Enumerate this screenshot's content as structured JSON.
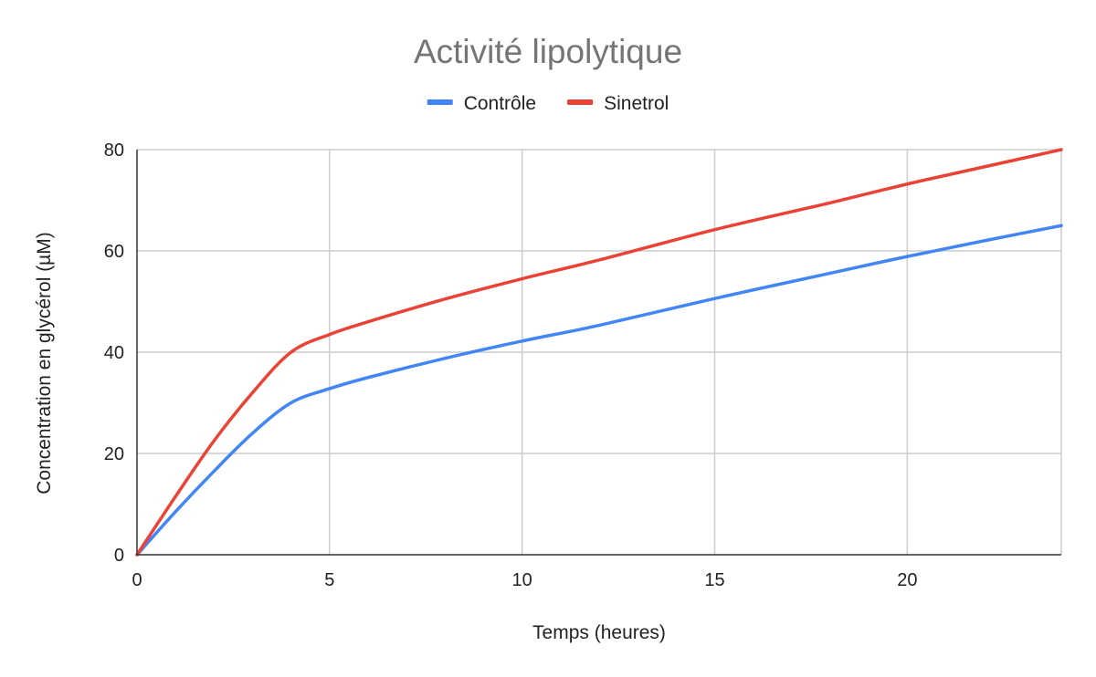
{
  "chart_data": {
    "type": "line",
    "title": "Activité lipolytique",
    "xlabel": "Temps (heures)",
    "ylabel": "Concentration en glycérol (µM)",
    "xlim": [
      0,
      24
    ],
    "ylim": [
      0,
      80
    ],
    "x_ticks": [
      0,
      5,
      10,
      15,
      20
    ],
    "x_tick_labels": [
      "0",
      "5",
      "10",
      "15",
      "20"
    ],
    "y_ticks": [
      0,
      20,
      40,
      60,
      80
    ],
    "y_tick_labels": [
      "0",
      "20",
      "40",
      "60",
      "80"
    ],
    "grid": true,
    "legend_position": "top",
    "series": [
      {
        "name": "Contrôle",
        "color": "#4285f4",
        "points": [
          [
            0,
            0
          ],
          [
            1,
            8.5
          ],
          [
            2,
            16.5
          ],
          [
            3,
            24
          ],
          [
            4,
            30
          ],
          [
            5,
            32.8
          ],
          [
            6,
            35
          ],
          [
            8,
            38.8
          ],
          [
            10,
            42.2
          ],
          [
            12,
            45.3
          ],
          [
            15,
            50.6
          ],
          [
            18,
            55.6
          ],
          [
            20,
            58.9
          ],
          [
            22,
            62
          ],
          [
            24,
            65
          ]
        ]
      },
      {
        "name": "Sinetrol",
        "color": "#ea4335",
        "points": [
          [
            0,
            0
          ],
          [
            1,
            11.5
          ],
          [
            2,
            22.5
          ],
          [
            3,
            32
          ],
          [
            4,
            40
          ],
          [
            5,
            43.5
          ],
          [
            6,
            46
          ],
          [
            8,
            50.5
          ],
          [
            10,
            54.5
          ],
          [
            12,
            58.2
          ],
          [
            15,
            64.2
          ],
          [
            18,
            69.5
          ],
          [
            20,
            73.2
          ],
          [
            22,
            76.6
          ],
          [
            24,
            80
          ]
        ]
      }
    ]
  }
}
